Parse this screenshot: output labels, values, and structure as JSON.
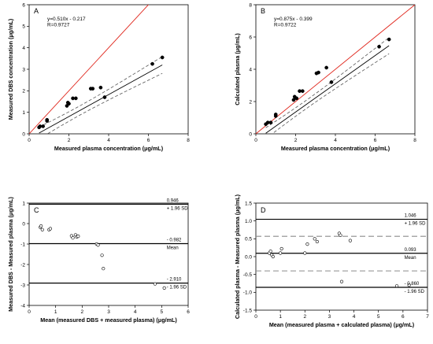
{
  "chart_data": [
    {
      "type": "scatter",
      "panel": "A",
      "xlabel": "Measured plasma concentration (μg/mL)",
      "ylabel": "Measured DBS concentration (μg/mL)",
      "xlim": [
        0,
        8
      ],
      "ylim": [
        0,
        6
      ],
      "xticks": [
        "0",
        "2",
        "4",
        "6",
        "8"
      ],
      "yticks": [
        "0",
        "1",
        "2",
        "3",
        "4",
        "5",
        "6"
      ],
      "annotations": [
        "y=0.510x - 0.217",
        "R=0.9727"
      ],
      "identity_line": true,
      "regression": {
        "slope": 0.51,
        "intercept": -0.217
      },
      "points": [
        [
          0.5,
          0.3
        ],
        [
          0.55,
          0.35
        ],
        [
          0.7,
          0.35
        ],
        [
          0.9,
          0.6
        ],
        [
          0.9,
          0.65
        ],
        [
          1.9,
          1.3
        ],
        [
          1.95,
          1.45
        ],
        [
          2.0,
          1.4
        ],
        [
          2.2,
          1.65
        ],
        [
          2.35,
          1.65
        ],
        [
          3.1,
          2.1
        ],
        [
          3.2,
          2.1
        ],
        [
          3.6,
          2.15
        ],
        [
          3.8,
          1.7
        ],
        [
          6.2,
          3.25
        ],
        [
          6.7,
          3.55
        ]
      ]
    },
    {
      "type": "scatter",
      "panel": "B",
      "xlabel": "Measured plasma concentration (μg/mL)",
      "ylabel": "Calculated plasma (μg/mL)",
      "xlim": [
        0,
        8
      ],
      "ylim": [
        0,
        8
      ],
      "xticks": [
        "0",
        "2",
        "4",
        "6",
        "8"
      ],
      "yticks": [
        "0",
        "2",
        "4",
        "6",
        "8"
      ],
      "annotations": [
        "y=0.875x - 0.399",
        "R=0.9722"
      ],
      "identity_line": true,
      "regression": {
        "slope": 0.875,
        "intercept": -0.399
      },
      "points": [
        [
          0.5,
          0.6
        ],
        [
          0.6,
          0.7
        ],
        [
          0.75,
          0.7
        ],
        [
          1.0,
          1.1
        ],
        [
          1.0,
          1.2
        ],
        [
          1.9,
          2.1
        ],
        [
          1.95,
          2.3
        ],
        [
          2.05,
          2.2
        ],
        [
          2.2,
          2.65
        ],
        [
          2.35,
          2.65
        ],
        [
          3.05,
          3.75
        ],
        [
          3.15,
          3.8
        ],
        [
          3.55,
          4.1
        ],
        [
          3.8,
          3.2
        ],
        [
          6.2,
          5.4
        ],
        [
          6.7,
          5.85
        ]
      ]
    },
    {
      "type": "scatter",
      "panel": "C",
      "xlabel": "Mean (measured DBS + measured plasma) (μg/mL)",
      "ylabel": "Measured DBS - Measured plasma (μg/mL)",
      "xlim": [
        0,
        6
      ],
      "ylim": [
        -4,
        1
      ],
      "xticks": [
        "0",
        "1",
        "2",
        "3",
        "4",
        "5",
        "6"
      ],
      "yticks": [
        "-4",
        "-3",
        "-2",
        "-1",
        "0",
        "1"
      ],
      "reference_lines": [
        {
          "value": 0.946,
          "label_value": "0.946",
          "label_text": "+ 1.96 SD"
        },
        {
          "value": -0.982,
          "label_value": "- 0.982",
          "label_text": "Mean"
        },
        {
          "value": -2.91,
          "label_value": "- 2.910",
          "label_text": "- 1.96 SD"
        }
      ],
      "points": [
        [
          0.42,
          -0.18
        ],
        [
          0.45,
          -0.12
        ],
        [
          0.5,
          -0.3
        ],
        [
          0.75,
          -0.3
        ],
        [
          0.8,
          -0.25
        ],
        [
          1.6,
          -0.6
        ],
        [
          1.65,
          -0.7
        ],
        [
          1.75,
          -0.55
        ],
        [
          1.8,
          -0.65
        ],
        [
          1.85,
          -0.62
        ],
        [
          2.55,
          -1.0
        ],
        [
          2.6,
          -1.05
        ],
        [
          2.75,
          -1.55
        ],
        [
          2.8,
          -2.2
        ],
        [
          4.75,
          -2.95
        ],
        [
          5.1,
          -3.15
        ]
      ]
    },
    {
      "type": "scatter",
      "panel": "D",
      "xlabel": "Mean (measured plasma + calculated plasma) (μg/mL)",
      "ylabel": "Calculated plasma - Measured plasma (μg/mL)",
      "xlim": [
        0,
        7
      ],
      "ylim": [
        -1.5,
        1.5
      ],
      "xticks": [
        "0",
        "1",
        "2",
        "3",
        "4",
        "5",
        "6",
        "7"
      ],
      "yticks": [
        "-1.5",
        "-1.0",
        "-0.5",
        "0.0",
        "0.5",
        "1.0",
        "1.5"
      ],
      "reference_lines": [
        {
          "value": 1.046,
          "label_value": "1.046",
          "label_text": "+ 1.96 SD"
        },
        {
          "value": 0.093,
          "label_value": "0.093",
          "label_text": "Mean"
        },
        {
          "value": -0.86,
          "label_value": "- 0.860",
          "label_text": "- 1.96 SD"
        }
      ],
      "dashed_lines": [
        0.57,
        -0.4
      ],
      "points": [
        [
          0.55,
          0.1
        ],
        [
          0.6,
          0.15
        ],
        [
          0.65,
          0.05
        ],
        [
          0.7,
          0.0
        ],
        [
          1.0,
          0.1
        ],
        [
          1.05,
          0.22
        ],
        [
          2.0,
          0.1
        ],
        [
          2.1,
          0.35
        ],
        [
          2.4,
          0.5
        ],
        [
          2.5,
          0.42
        ],
        [
          3.4,
          0.65
        ],
        [
          3.45,
          0.6
        ],
        [
          3.5,
          -0.7
        ],
        [
          3.85,
          0.45
        ],
        [
          5.75,
          -0.82
        ],
        [
          6.25,
          -0.8
        ]
      ]
    }
  ],
  "colors": {
    "identity": "#e0261c",
    "line": "#000000",
    "dash": "#555555",
    "refdash": "#8c8c8c",
    "point": "#000000"
  }
}
